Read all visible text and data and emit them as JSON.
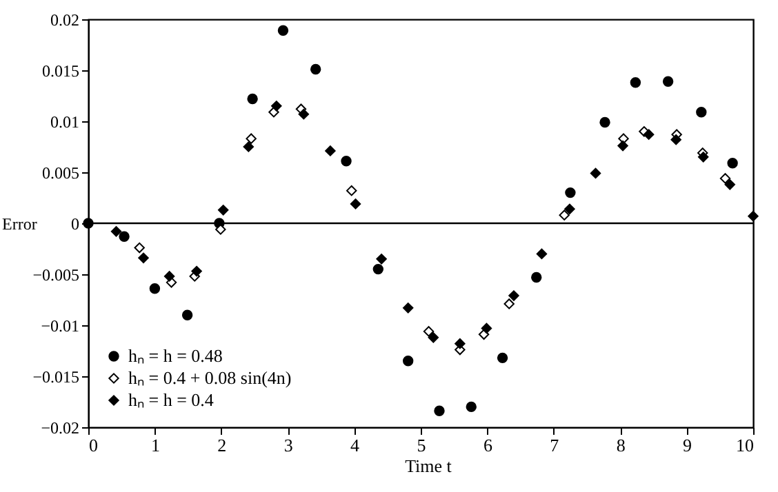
{
  "chart_data": {
    "type": "scatter",
    "xlabel": "Time t",
    "ylabel": "Error",
    "xlim": [
      0,
      10
    ],
    "ylim": [
      -0.02,
      0.02
    ],
    "xticks": [
      0,
      1,
      2,
      3,
      4,
      5,
      6,
      7,
      8,
      9,
      10
    ],
    "yticks": [
      -0.02,
      -0.015,
      -0.01,
      -0.005,
      0,
      0.005,
      0.01,
      0.015,
      0.02
    ],
    "legend": "bottom left",
    "grid": false,
    "ref_lines": [
      {
        "axis": "y",
        "value": 0
      }
    ],
    "series": [
      {
        "name": "hₙ = h = 0.48",
        "color": "#000000",
        "marker": "circle",
        "x": [
          0,
          0.54,
          1.0,
          1.49,
          1.97,
          2.47,
          2.93,
          3.42,
          3.88,
          4.36,
          4.81,
          5.28,
          5.76,
          6.23,
          6.74,
          7.25,
          7.77,
          8.23,
          8.72,
          9.22,
          9.69
        ],
        "values": [
          0,
          -0.0013,
          -0.0064,
          -0.009,
          0,
          0.0122,
          0.0189,
          0.0151,
          0.0061,
          -0.0045,
          -0.0135,
          -0.0184,
          -0.018,
          -0.0132,
          -0.0053,
          0.003,
          0.0099,
          0.0138,
          0.0139,
          0.0109,
          0.0059
        ]
      },
      {
        "name": "hₙ = 0.4 + 0.08 sin(4n)",
        "color": "#ffffff",
        "marker": "diamond",
        "x": [
          0.77,
          1.25,
          1.6,
          1.99,
          2.45,
          2.79,
          3.2,
          3.96,
          5.12,
          5.59,
          5.95,
          6.33,
          7.16,
          8.05,
          8.36,
          8.85,
          9.24,
          9.58
        ],
        "values": [
          -0.0024,
          -0.0058,
          -0.0052,
          -0.0006,
          0.0083,
          0.0109,
          0.0112,
          0.0032,
          -0.0106,
          -0.0124,
          -0.0109,
          -0.0079,
          0.0008,
          0.0083,
          0.009,
          0.0087,
          0.0069,
          0.0044
        ]
      },
      {
        "name": "hₙ = h = 0.4",
        "color": "#000000",
        "marker": "diamond",
        "x": [
          0.42,
          0.83,
          1.22,
          1.63,
          2.03,
          2.41,
          2.83,
          3.24,
          3.64,
          4.02,
          4.41,
          4.81,
          5.19,
          5.59,
          5.99,
          6.4,
          6.82,
          7.24,
          7.63,
          8.04,
          8.43,
          8.84,
          9.25,
          9.65,
          10
        ],
        "values": [
          -0.0008,
          -0.0034,
          -0.0052,
          -0.0047,
          0.0013,
          0.0075,
          0.0115,
          0.0107,
          0.0071,
          0.0019,
          -0.0035,
          -0.0083,
          -0.0112,
          -0.0118,
          -0.0103,
          -0.0071,
          -0.003,
          0.0014,
          0.0049,
          0.0076,
          0.0087,
          0.0082,
          0.0065,
          0.0038,
          0.0007
        ]
      }
    ]
  }
}
